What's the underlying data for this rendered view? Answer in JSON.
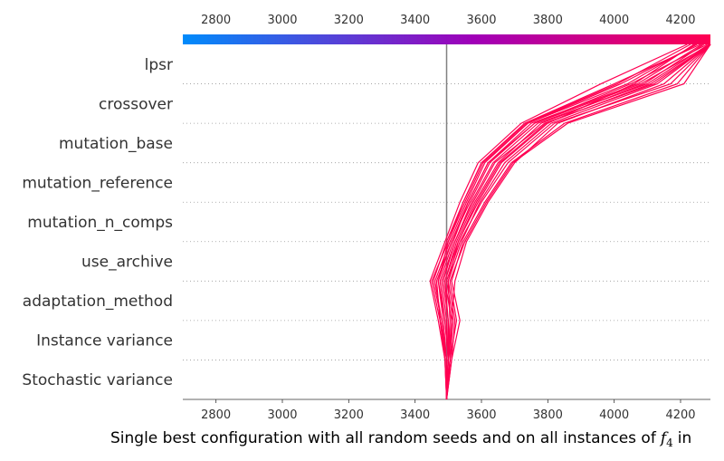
{
  "chart_data": {
    "type": "decision_plot",
    "xlabel": "Single best configuration with all random seeds and on all instances of",
    "xlabel_symbol": "f",
    "xlabel_subscript": "4",
    "xlabel_suffix": "in",
    "xlim": [
      2700,
      4290
    ],
    "x_ticks": [
      2800,
      3000,
      3200,
      3400,
      3600,
      3800,
      4000,
      4200
    ],
    "x_tick_labels": [
      "2800",
      "3000",
      "3200",
      "3400",
      "3600",
      "3800",
      "4000",
      "4200"
    ],
    "base_value": 3495,
    "features": [
      "lpsr",
      "crossover",
      "mutation_base",
      "mutation_reference",
      "mutation_n_comps",
      "use_archive",
      "adaptation_method",
      "Instance variance",
      "Stochastic variance"
    ],
    "colorbar": {
      "low_color": "#008bfb",
      "mid_color": "#a000b8",
      "high_color": "#ff0052",
      "range": [
        2700,
        4290
      ]
    },
    "line_color": "#ff0052",
    "grid_style": "dotted",
    "series": [
      {
        "values": [
          3495,
          3490,
          3475,
          3465,
          3510,
          3560,
          3620,
          3760,
          4080,
          4290
        ]
      },
      {
        "values": [
          3495,
          3500,
          3490,
          3470,
          3500,
          3545,
          3600,
          3730,
          4000,
          4260
        ]
      },
      {
        "values": [
          3495,
          3505,
          3500,
          3485,
          3520,
          3575,
          3640,
          3790,
          4120,
          4290
        ]
      },
      {
        "values": [
          3495,
          3510,
          3520,
          3500,
          3530,
          3590,
          3660,
          3800,
          4060,
          4240
        ]
      },
      {
        "values": [
          3495,
          3500,
          3510,
          3520,
          3555,
          3620,
          3700,
          3830,
          4150,
          4290
        ]
      },
      {
        "values": [
          3495,
          3495,
          3480,
          3460,
          3505,
          3555,
          3610,
          3740,
          4020,
          4250
        ]
      },
      {
        "values": [
          3495,
          3500,
          3495,
          3480,
          3520,
          3570,
          3635,
          3770,
          4100,
          4285
        ]
      },
      {
        "values": [
          3495,
          3505,
          3515,
          3495,
          3535,
          3600,
          3680,
          3820,
          4170,
          4290
        ]
      },
      {
        "values": [
          3495,
          3490,
          3470,
          3445,
          3490,
          3535,
          3590,
          3720,
          3960,
          4220
        ]
      },
      {
        "values": [
          3495,
          3500,
          3500,
          3490,
          3525,
          3580,
          3650,
          3780,
          4090,
          4270
        ]
      },
      {
        "values": [
          3495,
          3510,
          3535,
          3510,
          3545,
          3610,
          3690,
          3850,
          4190,
          4290
        ]
      },
      {
        "values": [
          3495,
          3495,
          3485,
          3470,
          3510,
          3565,
          3625,
          3760,
          4050,
          4280
        ]
      },
      {
        "values": [
          3495,
          3500,
          3505,
          3500,
          3540,
          3595,
          3670,
          3810,
          4130,
          4290
        ]
      },
      {
        "values": [
          3495,
          3490,
          3480,
          3455,
          3495,
          3545,
          3600,
          3735,
          4010,
          4230
        ]
      },
      {
        "values": [
          3495,
          3505,
          3510,
          3490,
          3530,
          3585,
          3655,
          3795,
          4110,
          4290
        ]
      },
      {
        "values": [
          3495,
          3500,
          3490,
          3475,
          3515,
          3560,
          3620,
          3750,
          4070,
          4265
        ]
      },
      {
        "values": [
          3495,
          3505,
          3525,
          3505,
          3550,
          3615,
          3695,
          3860,
          4210,
          4290
        ]
      },
      {
        "values": [
          3495,
          3495,
          3475,
          3450,
          3500,
          3550,
          3605,
          3740,
          4040,
          4245
        ]
      }
    ]
  }
}
